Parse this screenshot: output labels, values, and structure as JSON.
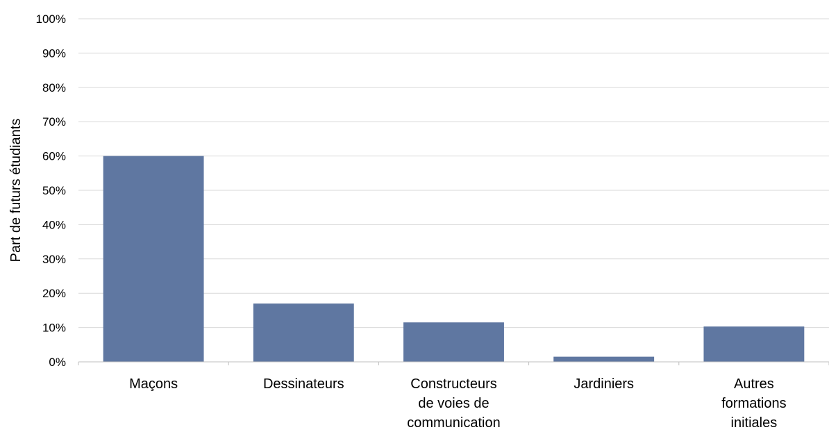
{
  "chart_data": {
    "type": "bar",
    "ylabel": "Part de futurs étudiants",
    "xlabel": "",
    "title": "",
    "ylim": [
      0,
      100
    ],
    "ytick_labels": [
      "0%",
      "10%",
      "20%",
      "30%",
      "40%",
      "50%",
      "60%",
      "70%",
      "80%",
      "90%",
      "100%"
    ],
    "categories": [
      [
        "Maçons"
      ],
      [
        "Dessinateurs"
      ],
      [
        "Constructeurs",
        "de voies de",
        "communication"
      ],
      [
        "Jardiniers"
      ],
      [
        "Autres",
        "formations",
        "initiales"
      ]
    ],
    "values": [
      60,
      17,
      11.5,
      1.5,
      10.3
    ],
    "grid": true,
    "colors": {
      "bar": "#5f77a1",
      "grid": "#d9d9d9",
      "axis": "#bfbfbf"
    }
  }
}
